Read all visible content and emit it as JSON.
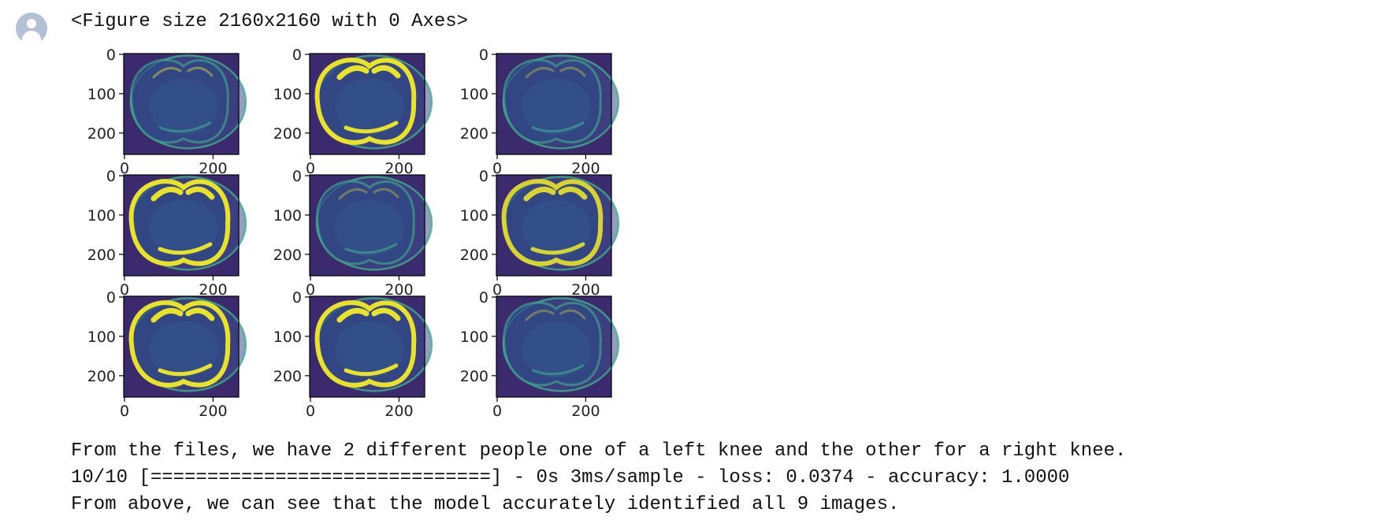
{
  "output": {
    "figure_header": "<Figure size 2160x2160 with 0 Axes>",
    "lines": [
      "From the files, we have 2 different people one of a left knee and the other for a right knee.",
      "10/10 [==============================] - 0s 3ms/sample - loss: 0.0374 - accuracy: 1.0000",
      "From above, we can see that the model accurately identified all 9 images."
    ]
  },
  "figure": {
    "colormap": "viridis",
    "background_color": "#3b2a6e",
    "bright_color": "#e8e22a",
    "mid_color": "#3fb08a",
    "subplots": [
      {
        "row": 0,
        "col": 0,
        "intensity": 0.45,
        "y_ticks": [
          "0",
          "100",
          "200"
        ],
        "x_ticks": [
          "0",
          "200"
        ]
      },
      {
        "row": 0,
        "col": 1,
        "intensity": 1.0,
        "y_ticks": [
          "0",
          "100",
          "200"
        ],
        "x_ticks": [
          "0",
          "200"
        ]
      },
      {
        "row": 0,
        "col": 2,
        "intensity": 0.35,
        "y_ticks": [
          "0",
          "100",
          "200"
        ],
        "x_ticks": [
          "0",
          "200"
        ]
      },
      {
        "row": 1,
        "col": 0,
        "intensity": 1.0,
        "y_ticks": [
          "0",
          "100",
          "200"
        ],
        "x_ticks": [
          "0",
          "200"
        ]
      },
      {
        "row": 1,
        "col": 1,
        "intensity": 0.35,
        "y_ticks": [
          "0",
          "100",
          "200"
        ],
        "x_ticks": [
          "0",
          "200"
        ]
      },
      {
        "row": 1,
        "col": 2,
        "intensity": 0.9,
        "y_ticks": [
          "0",
          "100",
          "200"
        ],
        "x_ticks": [
          "0",
          "200"
        ]
      },
      {
        "row": 2,
        "col": 0,
        "intensity": 1.0,
        "y_ticks": [
          "0",
          "100",
          "200"
        ],
        "x_ticks": [
          "0",
          "200"
        ]
      },
      {
        "row": 2,
        "col": 1,
        "intensity": 1.0,
        "y_ticks": [
          "0",
          "100",
          "200"
        ],
        "x_ticks": [
          "0",
          "200"
        ]
      },
      {
        "row": 2,
        "col": 2,
        "intensity": 0.35,
        "y_ticks": [
          "0",
          "100",
          "200"
        ],
        "x_ticks": [
          "0",
          "200"
        ]
      }
    ]
  }
}
